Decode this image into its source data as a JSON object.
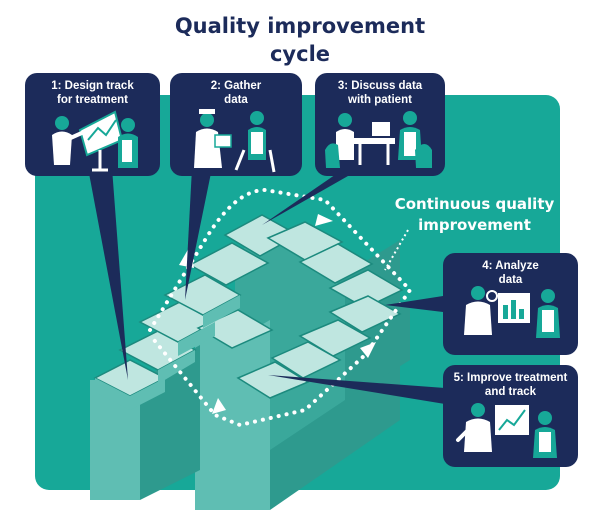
{
  "title": {
    "line1": "Quality improvement",
    "line2": "cycle"
  },
  "cycle_label": {
    "line1": "Continuous quality",
    "line2": "improvement"
  },
  "steps": [
    {
      "line1": "1: Design track",
      "line2": "for treatment",
      "icon": "design-track-illustration"
    },
    {
      "line1": "2: Gather",
      "line2": "data",
      "icon": "gather-data-illustration"
    },
    {
      "line1": "3: Discuss data",
      "line2": "with patient",
      "icon": "discuss-data-illustration"
    },
    {
      "line1": "4: Analyze",
      "line2": "data",
      "icon": "analyze-data-illustration"
    },
    {
      "line1": "5: Improve treatment",
      "line2": "and track",
      "icon": "improve-treatment-illustration"
    }
  ],
  "colors": {
    "navy": "#1c2b5a",
    "teal_background": "#17a898",
    "block_top": "#bfe6e0",
    "block_side": "#5fbeb3",
    "block_dark": "#2e9a8e",
    "character_fill": "#ffffff"
  }
}
